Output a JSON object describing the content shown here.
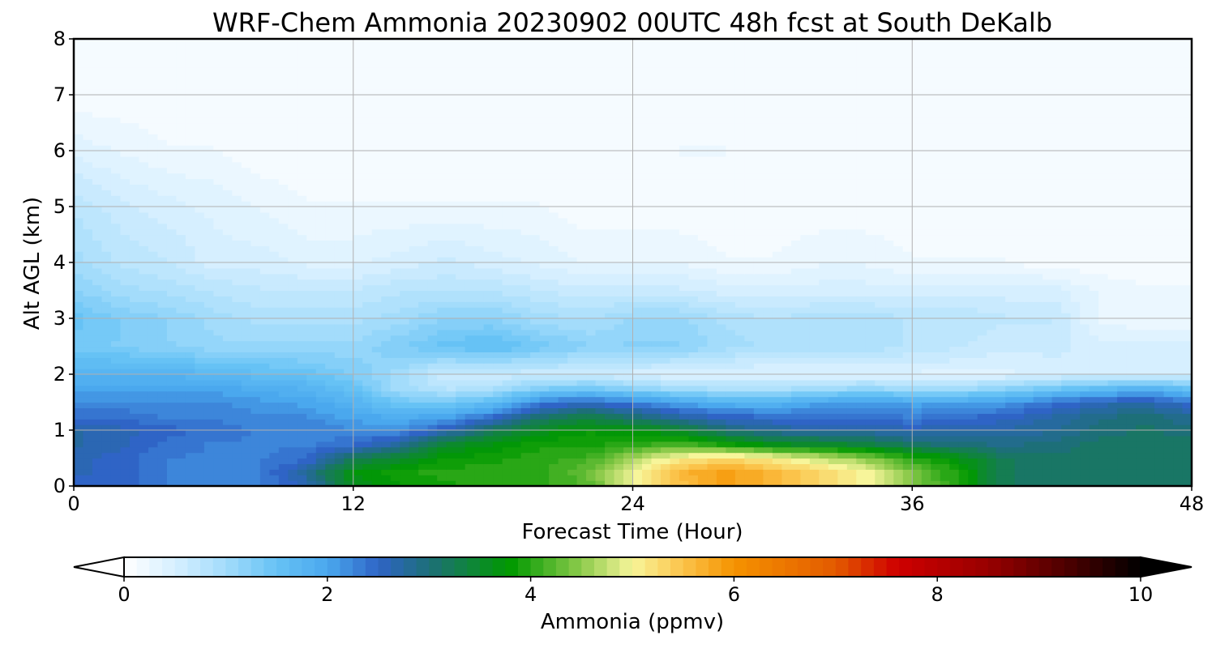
{
  "chart_data": {
    "type": "heatmap",
    "title": "WRF-Chem Ammonia  20230902 00UTC 48h fcst at South DeKalb",
    "xlabel": "Forecast Time (Hour)",
    "ylabel": "Alt AGL (km)",
    "xlim": [
      0,
      48
    ],
    "ylim": [
      0,
      8
    ],
    "x_ticks": [
      "0",
      "12",
      "24",
      "36",
      "48"
    ],
    "y_ticks": [
      "0",
      "1",
      "2",
      "3",
      "4",
      "5",
      "6",
      "7",
      "8"
    ],
    "grid": true,
    "colorbar": {
      "label": "Ammonia  (ppmv)",
      "range": [
        0,
        10
      ],
      "ticks": [
        "0",
        "2",
        "4",
        "6",
        "8",
        "10"
      ],
      "extend": "both",
      "stops": [
        {
          "v": 0.0,
          "c": "#ffffff"
        },
        {
          "v": 0.5,
          "c": "#d6efff"
        },
        {
          "v": 1.0,
          "c": "#a3dcfb"
        },
        {
          "v": 1.5,
          "c": "#66c2f5"
        },
        {
          "v": 2.0,
          "c": "#4aa8ee"
        },
        {
          "v": 2.5,
          "c": "#2f64c6"
        },
        {
          "v": 3.0,
          "c": "#1d6f78"
        },
        {
          "v": 3.5,
          "c": "#0c8a2c"
        },
        {
          "v": 3.8,
          "c": "#009900"
        },
        {
          "v": 4.5,
          "c": "#8ecb4c"
        },
        {
          "v": 5.0,
          "c": "#f7f59a"
        },
        {
          "v": 5.5,
          "c": "#fbc34a"
        },
        {
          "v": 6.0,
          "c": "#f59300"
        },
        {
          "v": 7.0,
          "c": "#e35a00"
        },
        {
          "v": 7.6,
          "c": "#cf0000"
        },
        {
          "v": 8.5,
          "c": "#980000"
        },
        {
          "v": 9.3,
          "c": "#4a0000"
        },
        {
          "v": 10.0,
          "c": "#000000"
        }
      ]
    },
    "hours": [
      0,
      2,
      4,
      6,
      8,
      10,
      12,
      14,
      16,
      18,
      20,
      22,
      24,
      26,
      28,
      30,
      32,
      34,
      36,
      38,
      40,
      42,
      44,
      46,
      48
    ],
    "altitudes_km": [
      0,
      0.25,
      0.5,
      0.75,
      1.0,
      1.25,
      1.5,
      1.75,
      2.0,
      2.5,
      3.0,
      3.5,
      4.0,
      5.0,
      6.0,
      7.0,
      8.0
    ],
    "values_ppmv": [
      [
        2.5,
        2.5,
        2.3,
        2.3,
        2.3,
        2.6,
        3.6,
        3.8,
        3.9,
        4.0,
        4.0,
        4.2,
        4.9,
        5.5,
        5.9,
        5.6,
        5.3,
        5.0,
        4.5,
        3.9,
        3.2,
        3.1,
        3.1,
        3.1,
        3.1
      ],
      [
        2.6,
        2.5,
        2.3,
        2.3,
        2.3,
        2.8,
        3.7,
        3.9,
        4.0,
        4.0,
        4.0,
        4.3,
        5.0,
        5.6,
        5.9,
        5.6,
        5.3,
        5.0,
        4.4,
        3.9,
        3.2,
        3.1,
        3.1,
        3.1,
        3.1
      ],
      [
        2.6,
        2.5,
        2.3,
        2.3,
        2.3,
        2.4,
        3.2,
        3.5,
        3.8,
        3.9,
        4.0,
        4.1,
        4.6,
        5.1,
        5.3,
        5.1,
        4.8,
        4.5,
        4.0,
        3.7,
        3.2,
        3.1,
        3.1,
        3.1,
        3.1
      ],
      [
        2.7,
        2.6,
        2.4,
        2.3,
        2.3,
        2.3,
        2.4,
        2.8,
        3.5,
        3.7,
        3.9,
        3.9,
        4.0,
        4.2,
        3.9,
        3.6,
        3.5,
        3.4,
        3.1,
        3.0,
        2.9,
        3.0,
        3.1,
        3.1,
        3.1
      ],
      [
        2.7,
        2.6,
        2.5,
        2.4,
        2.3,
        2.3,
        2.2,
        2.2,
        2.6,
        3.2,
        3.6,
        3.8,
        3.7,
        3.5,
        3.0,
        2.8,
        2.7,
        2.7,
        2.6,
        2.7,
        2.7,
        2.8,
        3.0,
        3.1,
        3.0
      ],
      [
        2.4,
        2.4,
        2.3,
        2.3,
        2.2,
        2.2,
        2.0,
        1.9,
        2.0,
        2.4,
        3.0,
        3.3,
        3.0,
        2.7,
        2.5,
        2.4,
        2.4,
        2.4,
        2.3,
        2.4,
        2.5,
        2.7,
        2.9,
        3.0,
        2.8
      ],
      [
        2.2,
        2.2,
        2.2,
        2.2,
        2.1,
        2.0,
        1.8,
        1.4,
        1.4,
        1.6,
        2.3,
        2.5,
        2.3,
        2.0,
        1.8,
        1.8,
        2.0,
        2.1,
        2.0,
        2.0,
        2.1,
        2.4,
        2.6,
        2.7,
        2.4
      ],
      [
        2.0,
        2.0,
        2.0,
        2.0,
        1.9,
        1.8,
        1.5,
        1.0,
        0.8,
        0.9,
        1.3,
        1.4,
        1.2,
        1.0,
        0.9,
        0.9,
        1.0,
        1.1,
        1.0,
        1.0,
        1.2,
        1.4,
        1.6,
        1.8,
        1.5
      ],
      [
        1.8,
        1.8,
        1.8,
        1.7,
        1.6,
        1.5,
        1.3,
        1.0,
        0.6,
        0.6,
        0.6,
        0.6,
        0.5,
        0.4,
        0.4,
        0.4,
        0.4,
        0.4,
        0.4,
        0.4,
        0.4,
        0.5,
        0.5,
        0.5,
        0.5
      ],
      [
        1.4,
        1.3,
        1.2,
        1.1,
        1.1,
        1.1,
        1.1,
        1.3,
        1.5,
        1.6,
        1.4,
        1.2,
        1.2,
        1.2,
        1.0,
        0.9,
        0.9,
        0.9,
        0.8,
        0.7,
        0.6,
        0.6,
        0.5,
        0.5,
        0.5
      ],
      [
        1.5,
        1.3,
        1.2,
        1.0,
        0.9,
        0.9,
        0.9,
        1.0,
        1.2,
        1.2,
        1.0,
        0.9,
        1.1,
        1.1,
        0.9,
        0.8,
        0.9,
        0.9,
        0.8,
        0.8,
        0.7,
        0.7,
        0.3,
        0.2,
        0.2
      ],
      [
        1.2,
        1.0,
        0.9,
        0.8,
        0.7,
        0.7,
        0.7,
        0.8,
        0.8,
        0.8,
        0.7,
        0.6,
        0.6,
        0.6,
        0.5,
        0.5,
        0.5,
        0.5,
        0.5,
        0.5,
        0.5,
        0.5,
        0.3,
        0.2,
        0.2
      ],
      [
        1.0,
        0.8,
        0.7,
        0.5,
        0.5,
        0.4,
        0.4,
        0.5,
        0.6,
        0.5,
        0.4,
        0.3,
        0.3,
        0.3,
        0.2,
        0.2,
        0.3,
        0.3,
        0.2,
        0.2,
        0.2,
        0.1,
        0.1,
        0.1,
        0.1
      ],
      [
        0.8,
        0.6,
        0.5,
        0.4,
        0.3,
        0.2,
        0.2,
        0.2,
        0.2,
        0.2,
        0.2,
        0.1,
        0.1,
        0.1,
        0.1,
        0.1,
        0.1,
        0.1,
        0.1,
        0.1,
        0.1,
        0.1,
        0.1,
        0.1,
        0.1
      ],
      [
        0.4,
        0.3,
        0.2,
        0.2,
        0.1,
        0.1,
        0.1,
        0.1,
        0.1,
        0.1,
        0.1,
        0.1,
        0.1,
        0.2,
        0.2,
        0.1,
        0.1,
        0.1,
        0.1,
        0.1,
        0.1,
        0.1,
        0.1,
        0.1,
        0.1
      ],
      [
        0.1,
        0.1,
        0.1,
        0.1,
        0.1,
        0.1,
        0.1,
        0.1,
        0.1,
        0.1,
        0.1,
        0.1,
        0.1,
        0.1,
        0.1,
        0.1,
        0.1,
        0.1,
        0.1,
        0.1,
        0.1,
        0.1,
        0.1,
        0.1,
        0.1
      ],
      [
        0.1,
        0.1,
        0.1,
        0.1,
        0.1,
        0.1,
        0.1,
        0.1,
        0.1,
        0.1,
        0.1,
        0.1,
        0.1,
        0.1,
        0.1,
        0.1,
        0.1,
        0.1,
        0.1,
        0.1,
        0.1,
        0.1,
        0.1,
        0.1,
        0.1
      ]
    ]
  }
}
